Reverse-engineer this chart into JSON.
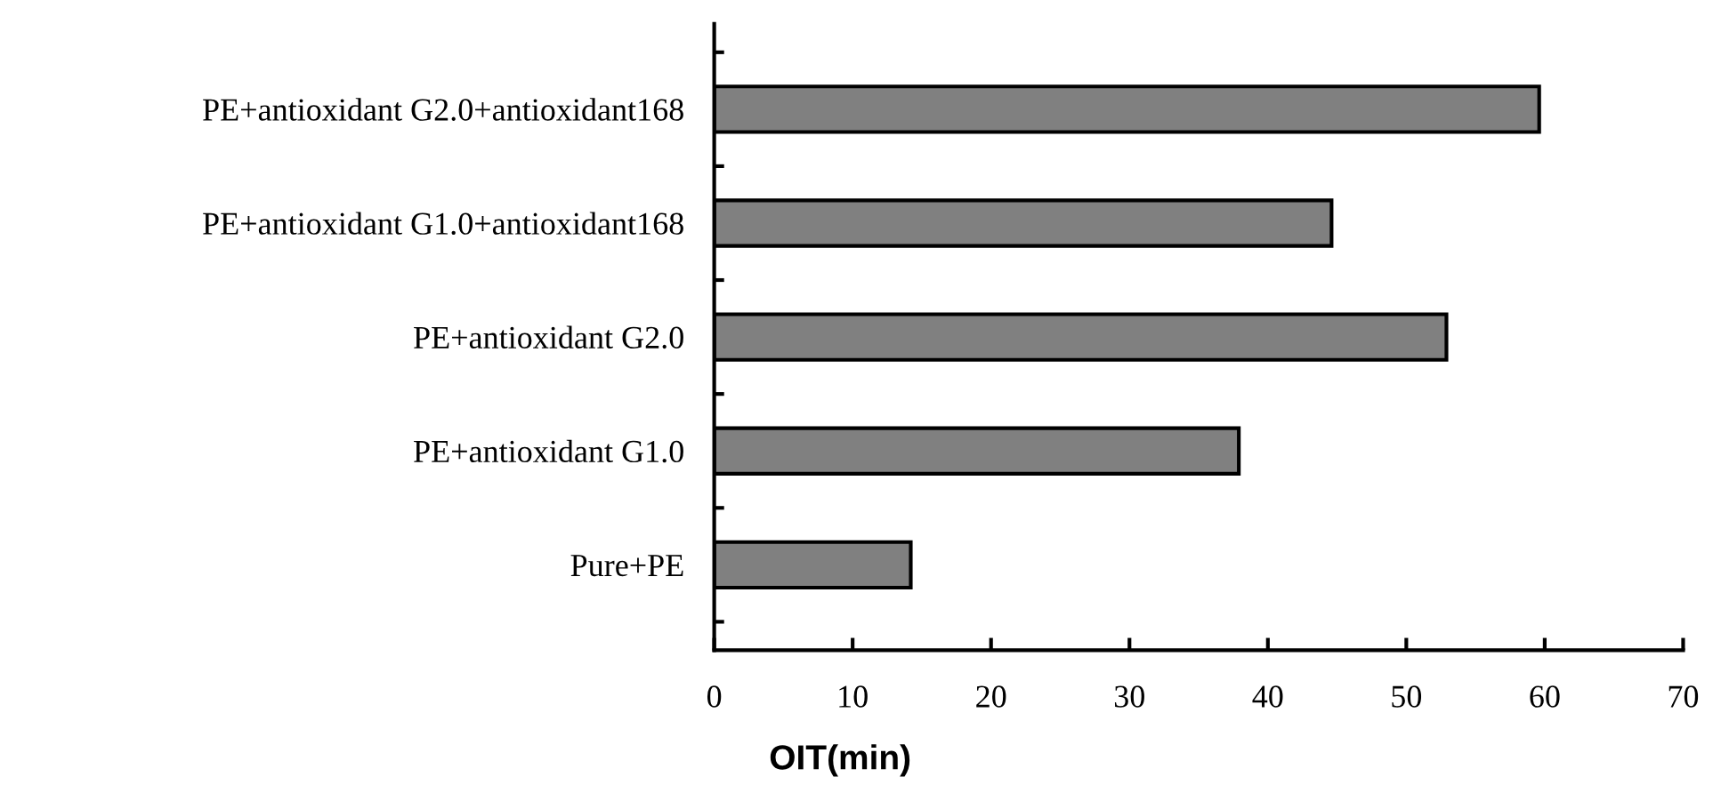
{
  "chart_data": {
    "type": "bar",
    "orientation": "horizontal",
    "xlabel": "OIT(min)",
    "categories": [
      "PE+antioxidant G2.0+antioxidant168",
      "PE+antioxidant G1.0+antioxidant168",
      "PE+antioxidant G2.0",
      "PE+antioxidant G1.0",
      "Pure+PE"
    ],
    "values": [
      59.6,
      44.6,
      52.9,
      37.9,
      14.2
    ],
    "color": "#808080",
    "xlim": [
      0,
      70
    ],
    "xticks": [
      0,
      10,
      20,
      30,
      40,
      50,
      60,
      70
    ],
    "grid": false,
    "legend": false
  }
}
